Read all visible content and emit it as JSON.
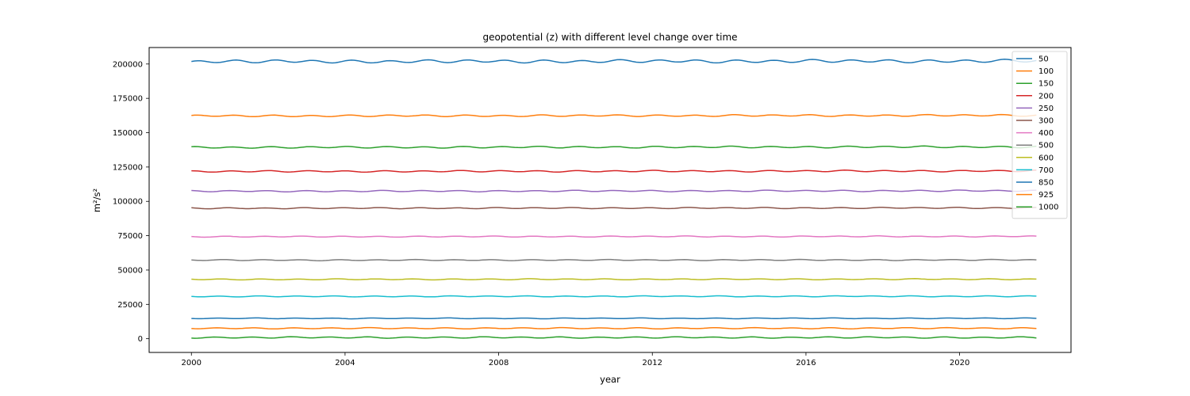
{
  "chart_data": {
    "type": "line",
    "title": "geopotential (z) with different level change over time",
    "xlabel": "year",
    "ylabel": "m²/s²",
    "xlim": [
      1998.9,
      2022.9
    ],
    "ylim": [
      -10000,
      212000
    ],
    "x_ticks": [
      2000,
      2004,
      2008,
      2012,
      2016,
      2020
    ],
    "y_ticks": [
      0,
      25000,
      50000,
      75000,
      100000,
      125000,
      150000,
      175000,
      200000
    ],
    "x_start": 2000.0,
    "x_end": 2022.0,
    "legend_position": "top-right",
    "grid": false,
    "series": [
      {
        "name": "50",
        "color": "#1f77b4",
        "base": 201800,
        "amplitude": 900,
        "trend": 400
      },
      {
        "name": "100",
        "color": "#ff7f0e",
        "base": 162200,
        "amplitude": 500,
        "trend": 400
      },
      {
        "name": "150",
        "color": "#2ca02c",
        "base": 139300,
        "amplitude": 500,
        "trend": 400
      },
      {
        "name": "200",
        "color": "#d62728",
        "base": 121800,
        "amplitude": 450,
        "trend": 350
      },
      {
        "name": "250",
        "color": "#9467bd",
        "base": 107400,
        "amplitude": 400,
        "trend": 300
      },
      {
        "name": "300",
        "color": "#8c564b",
        "base": 95000,
        "amplitude": 350,
        "trend": 250
      },
      {
        "name": "400",
        "color": "#e377c2",
        "base": 74300,
        "amplitude": 300,
        "trend": 200
      },
      {
        "name": "500",
        "color": "#7f7f7f",
        "base": 57200,
        "amplitude": 300,
        "trend": 150
      },
      {
        "name": "600",
        "color": "#bcbd22",
        "base": 43200,
        "amplitude": 300,
        "trend": 150
      },
      {
        "name": "700",
        "color": "#17becf",
        "base": 30800,
        "amplitude": 300,
        "trend": 100
      },
      {
        "name": "850",
        "color": "#1f77b4",
        "base": 14800,
        "amplitude": 250,
        "trend": 50
      },
      {
        "name": "925",
        "color": "#ff7f0e",
        "base": 7600,
        "amplitude": 350,
        "trend": 50
      },
      {
        "name": "1000",
        "color": "#2ca02c",
        "base": 900,
        "amplitude": 400,
        "trend": 0
      }
    ]
  }
}
